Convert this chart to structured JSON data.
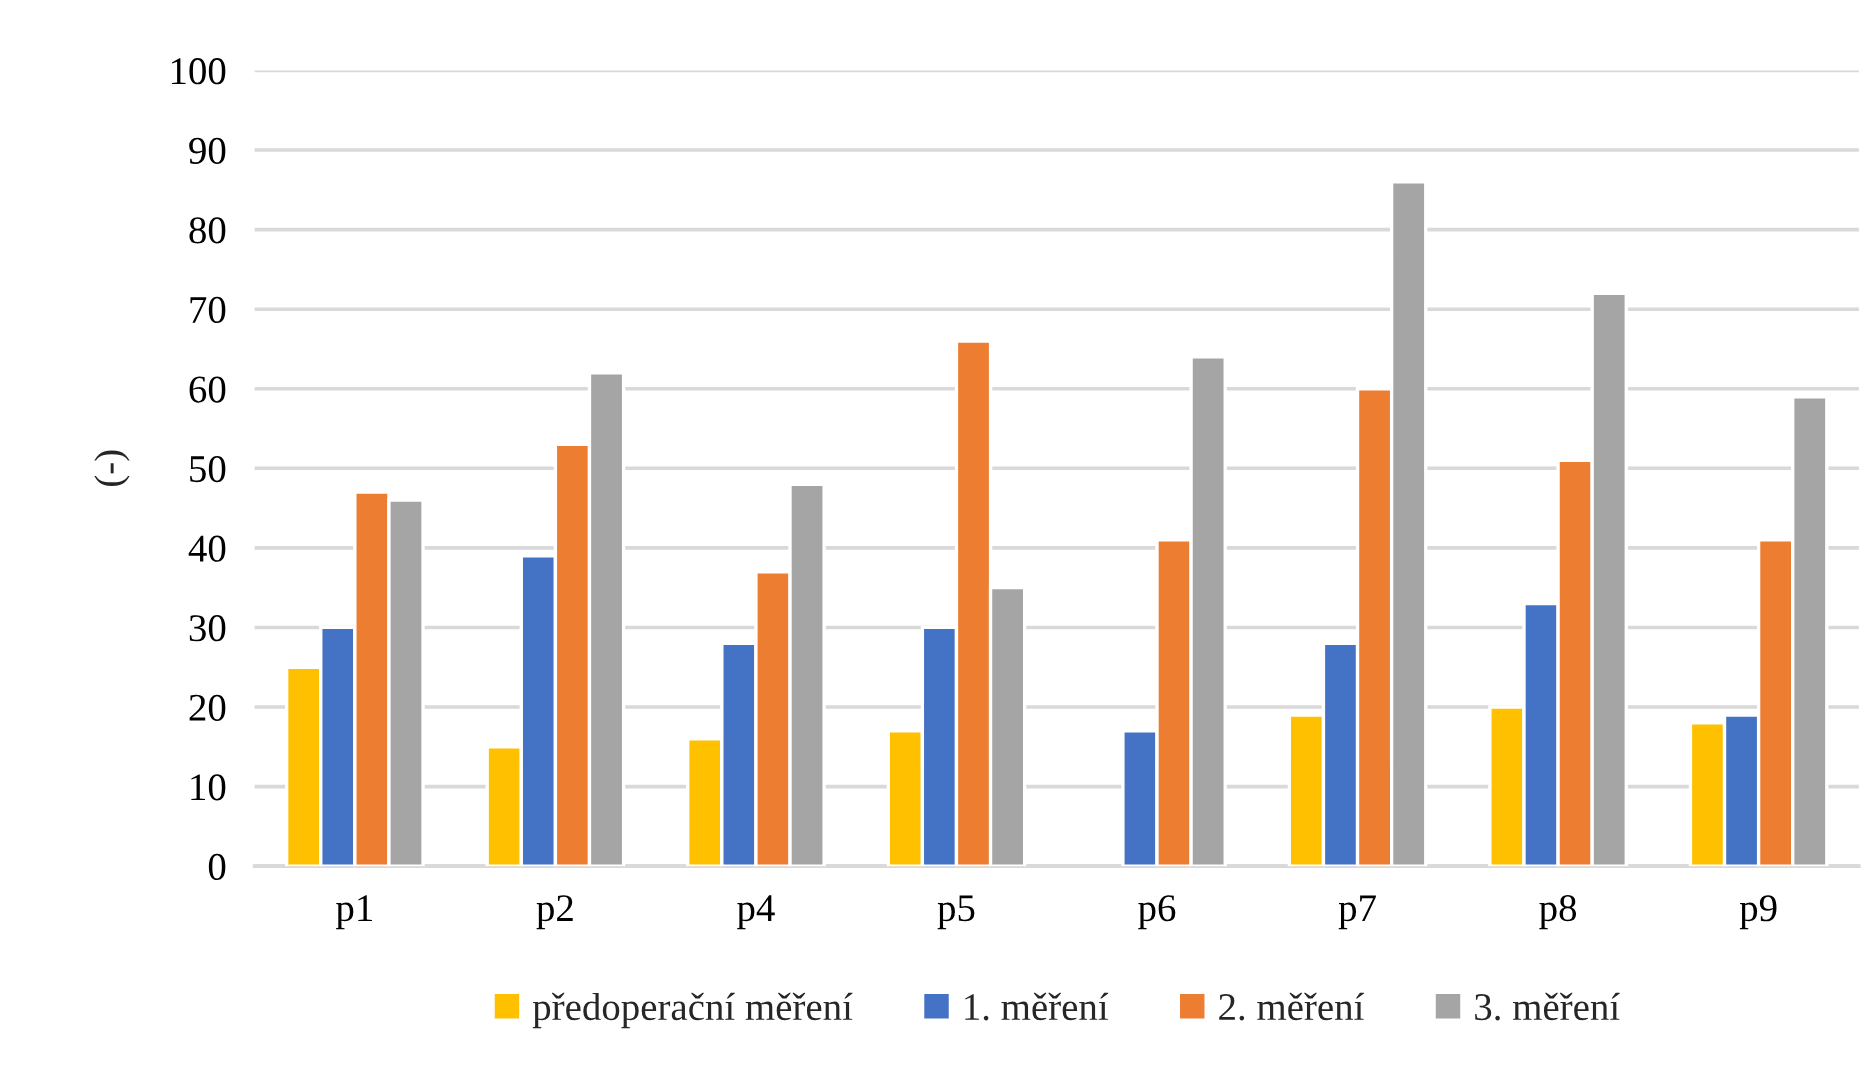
{
  "chart_data": {
    "type": "bar",
    "ylabel": "(-)",
    "categories": [
      "p1",
      "p2",
      "p4",
      "p5",
      "p6",
      "p7",
      "p8",
      "p9"
    ],
    "series": [
      {
        "name": "předoperační měření",
        "color": "#ffc000",
        "values": [
          25,
          15,
          16,
          17,
          null,
          19,
          20,
          18
        ]
      },
      {
        "name": "1. měření",
        "color": "#4472c4",
        "values": [
          30,
          39,
          28,
          30,
          17,
          28,
          33,
          19
        ]
      },
      {
        "name": "2. měření",
        "color": "#ed7d31",
        "values": [
          47,
          53,
          37,
          66,
          41,
          60,
          51,
          41
        ]
      },
      {
        "name": "3. měření",
        "color": "#a5a5a5",
        "values": [
          46,
          62,
          48,
          35,
          64,
          86,
          72,
          59
        ]
      }
    ],
    "ylim": [
      0,
      100
    ],
    "yticks": [
      0,
      10,
      20,
      30,
      40,
      50,
      60,
      70,
      80,
      90,
      100
    ],
    "grid": "y",
    "legend": "bottom"
  }
}
